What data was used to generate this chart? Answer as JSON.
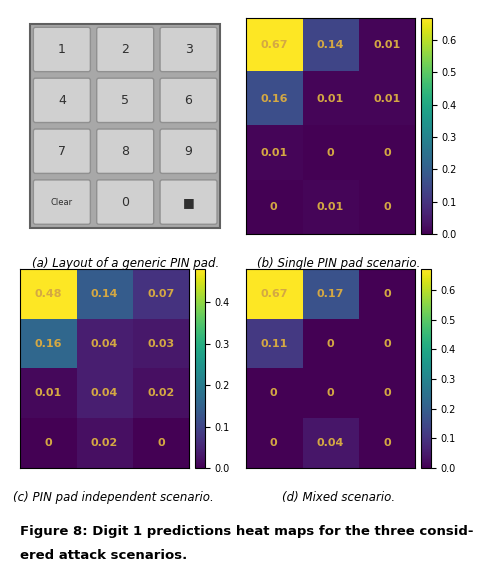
{
  "heatmap_b": {
    "data": [
      [
        0.67,
        0.14,
        0.01
      ],
      [
        0.16,
        0.01,
        0.01
      ],
      [
        0.01,
        0.0,
        0.0
      ],
      [
        0.0,
        0.01,
        0.0
      ]
    ],
    "vmin": 0.0,
    "vmax": 0.67,
    "colorbar_ticks": [
      0.0,
      0.1,
      0.2,
      0.3,
      0.4,
      0.5,
      0.6
    ],
    "caption": "(b) Single PIN pad scenario."
  },
  "heatmap_c": {
    "data": [
      [
        0.48,
        0.14,
        0.07
      ],
      [
        0.16,
        0.04,
        0.03
      ],
      [
        0.01,
        0.04,
        0.02
      ],
      [
        0.0,
        0.02,
        0.0
      ]
    ],
    "vmin": 0.0,
    "vmax": 0.48,
    "colorbar_ticks": [
      0.0,
      0.1,
      0.2,
      0.3,
      0.4
    ],
    "caption": "(c) PIN pad independent scenario."
  },
  "heatmap_d": {
    "data": [
      [
        0.67,
        0.17,
        0.0
      ],
      [
        0.11,
        0.0,
        0.0
      ],
      [
        0.0,
        0.0,
        0.0
      ],
      [
        0.0,
        0.04,
        0.0
      ]
    ],
    "vmin": 0.0,
    "vmax": 0.67,
    "colorbar_ticks": [
      0.0,
      0.1,
      0.2,
      0.3,
      0.4,
      0.5,
      0.6
    ],
    "caption": "(d) Mixed scenario."
  },
  "caption_a": "(a) Layout of a generic PIN pad.",
  "figure_caption_line1": "Figure 8: Digit 1 predictions heat maps for the three consid-",
  "figure_caption_line2": "ered attack scenarios.",
  "text_color": "#d4a843",
  "annotation_fontsize": 8,
  "caption_fontsize": 8.5,
  "figure_caption_fontsize": 9.5,
  "cmap": "viridis",
  "background_color": "white",
  "pinpad_bg": "#a0a0a0",
  "pinpad_key_light": "#d8d8d8",
  "pinpad_key_dark": "#b8b8b8",
  "pinpad_border": "#707070",
  "pinpad_labels": [
    [
      "1",
      "2",
      "3"
    ],
    [
      "4",
      "5",
      "6"
    ],
    [
      "7",
      "8",
      "9"
    ],
    [
      "Clear",
      "0",
      "■"
    ]
  ],
  "pinpad_label_fontsize": 10
}
